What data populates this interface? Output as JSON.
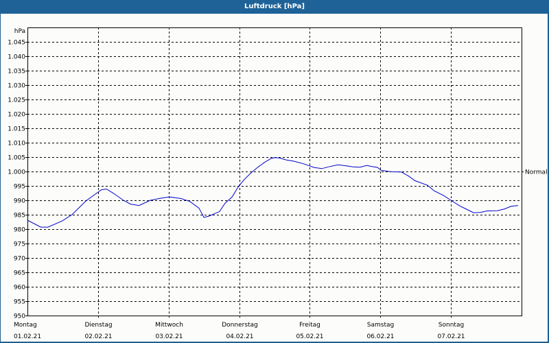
{
  "window": {
    "title": "Luftdruck [hPa]"
  },
  "colors": {
    "titlebar": "#1e6298",
    "border": "#1d5f93",
    "background": "#fcfdfb",
    "line": "#0000c8",
    "grid": "#000000"
  },
  "chart_data": {
    "type": "line",
    "title": "Luftdruck [hPa]",
    "xlabel": "",
    "ylabel": "hPa",
    "ylim": [
      950,
      1050
    ],
    "xlim_days": [
      0,
      7
    ],
    "grid": true,
    "y_ticks": [
      "950",
      "955",
      "960",
      "965",
      "970",
      "975",
      "980",
      "985",
      "990",
      "995",
      "1.000",
      "1.005",
      "1.010",
      "1.015",
      "1.020",
      "1.025",
      "1.030",
      "1.035",
      "1.040",
      "1.045"
    ],
    "y_tick_values": [
      950,
      955,
      960,
      965,
      970,
      975,
      980,
      985,
      990,
      995,
      1000,
      1005,
      1010,
      1015,
      1020,
      1025,
      1030,
      1035,
      1040,
      1045
    ],
    "x_ticks": [
      {
        "day": "Montag",
        "date": "01.02.21"
      },
      {
        "day": "Dienstag",
        "date": "02.02.21"
      },
      {
        "day": "Mittwoch",
        "date": "03.02.21"
      },
      {
        "day": "Donnerstag",
        "date": "04.02.21"
      },
      {
        "day": "Freitag",
        "date": "05.02.21"
      },
      {
        "day": "Samstag",
        "date": "06.02.21"
      },
      {
        "day": "Sonntag",
        "date": "07.02.21"
      }
    ],
    "annotations": [
      {
        "label": "Normal",
        "y": 1000
      }
    ],
    "series": [
      {
        "name": "Luftdruck",
        "x": [
          0.0,
          0.19,
          0.29,
          0.49,
          0.63,
          0.83,
          1.01,
          1.05,
          1.12,
          1.22,
          1.36,
          1.46,
          1.58,
          1.74,
          1.88,
          2.01,
          2.18,
          2.3,
          2.43,
          2.5,
          2.57,
          2.72,
          2.8,
          2.9,
          2.99,
          3.07,
          3.17,
          3.27,
          3.36,
          3.45,
          3.5,
          3.57,
          3.67,
          3.77,
          3.91,
          4.06,
          4.17,
          4.26,
          4.4,
          4.51,
          4.61,
          4.71,
          4.81,
          4.86,
          4.96,
          5.01,
          5.15,
          5.3,
          5.4,
          5.49,
          5.67,
          5.76,
          5.9,
          6.0,
          6.13,
          6.22,
          6.32,
          6.42,
          6.51,
          6.66,
          6.76,
          6.85,
          6.95
        ],
        "values": [
          983.1,
          980.7,
          980.7,
          982.8,
          985.0,
          989.8,
          993.0,
          993.7,
          993.9,
          992.4,
          990.0,
          988.7,
          988.2,
          990.0,
          990.7,
          991.2,
          990.6,
          989.6,
          987.3,
          984.1,
          984.5,
          986.1,
          989.0,
          991.2,
          994.8,
          997.2,
          999.6,
          1001.6,
          1003.2,
          1004.5,
          1004.8,
          1004.7,
          1004.0,
          1003.6,
          1002.7,
          1001.4,
          1001.0,
          1001.6,
          1002.3,
          1002.0,
          1001.6,
          1001.5,
          1002.1,
          1001.8,
          1001.4,
          1000.4,
          999.9,
          999.8,
          998.4,
          996.8,
          995.2,
          993.3,
          991.6,
          990.0,
          988.0,
          986.9,
          985.7,
          985.8,
          986.3,
          986.4,
          987.0,
          987.9,
          988.2
        ]
      }
    ]
  }
}
